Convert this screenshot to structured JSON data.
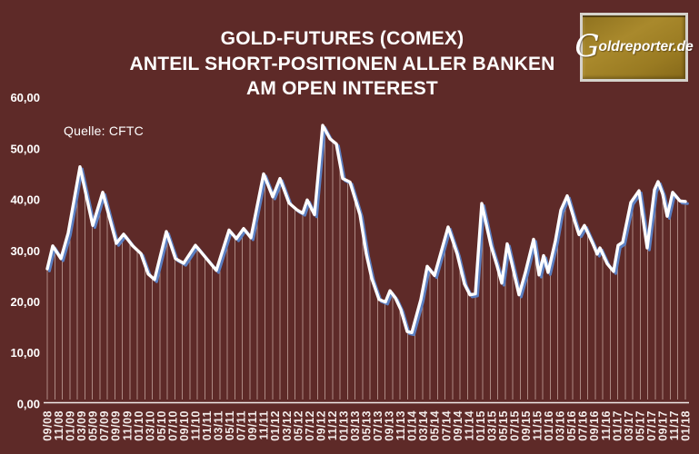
{
  "header": {
    "title_line1": "GOLD-FUTURES (COMEX)",
    "title_line2": "ANTEIL SHORT-POSITIONEN ALLER BANKEN",
    "title_line3": "AM OPEN INTEREST"
  },
  "source_label": "Quelle: CFTC",
  "logo": {
    "initial": "G",
    "rest": "oldreporter.de",
    "full_text": "Goldreporter.de"
  },
  "colors": {
    "background": "#5e2a28",
    "text": "#ffffff",
    "axis": "#f0e8e6",
    "drop_line": "#ad8a84",
    "series_line": "#ffffff",
    "series_shadow_blue": "#5b7fc2",
    "logo_gold": "#a9892c",
    "logo_frame": "#d5d2cc"
  },
  "chart_data": {
    "type": "line",
    "title": "GOLD-FUTURES (COMEX) — Anteil Short-Positionen aller Banken am Open Interest",
    "source": "Quelle: CFTC",
    "unit": "percent",
    "ylim": [
      0,
      60
    ],
    "grid": false,
    "legend": false,
    "y_ticks": [
      {
        "value": 60,
        "label": "60,00"
      },
      {
        "value": 50,
        "label": "50,00"
      },
      {
        "value": 40,
        "label": "40,00"
      },
      {
        "value": 30,
        "label": "30,00"
      },
      {
        "value": 20,
        "label": "20,00"
      },
      {
        "value": 10,
        "label": "10,00"
      },
      {
        "value": 0,
        "label": "0,00"
      }
    ],
    "x_tick_labels": [
      "09/08",
      "11/08",
      "01/09",
      "03/09",
      "05/09",
      "07/09",
      "09/09",
      "11/09",
      "01/10",
      "03/10",
      "05/10",
      "07/10",
      "09/10",
      "11/10",
      "01/11",
      "03/11",
      "05/11",
      "07/11",
      "09/11",
      "11/11",
      "01/12",
      "03/12",
      "05/12",
      "07/12",
      "09/12",
      "11/12",
      "01/13",
      "03/13",
      "05/13",
      "07/13",
      "09/13",
      "11/13",
      "01/14",
      "03/14",
      "05/14",
      "07/14",
      "09/14",
      "11/14",
      "01/15",
      "03/15",
      "05/15",
      "07/15",
      "09/15",
      "11/15",
      "01/16",
      "03/16",
      "05/16",
      "07/16",
      "09/16",
      "11/16",
      "01/17",
      "03/17",
      "05/17",
      "07/17",
      "09/17",
      "11/17",
      "01/18"
    ],
    "x_encoding": "points use [t, value] where t = fraction of x-axis from 09/2008 (0.0) to 01/2018 (1.0)",
    "drop_lines_count": 86,
    "series": [
      {
        "name": "Short-Anteil aller Banken am Open Interest (%)",
        "points": [
          [
            0.0,
            26.5
          ],
          [
            0.0085,
            31.0
          ],
          [
            0.0214,
            28.5
          ],
          [
            0.0328,
            33.5
          ],
          [
            0.0513,
            46.5
          ],
          [
            0.0712,
            35.0
          ],
          [
            0.0869,
            41.5
          ],
          [
            0.1083,
            31.5
          ],
          [
            0.1197,
            33.3
          ],
          [
            0.1339,
            31.0
          ],
          [
            0.1467,
            29.5
          ],
          [
            0.1581,
            25.5
          ],
          [
            0.1681,
            24.4
          ],
          [
            0.1866,
            33.8
          ],
          [
            0.2009,
            28.5
          ],
          [
            0.2137,
            27.6
          ],
          [
            0.2322,
            31.1
          ],
          [
            0.2536,
            27.9
          ],
          [
            0.265,
            26.2
          ],
          [
            0.2849,
            34.1
          ],
          [
            0.2963,
            32.4
          ],
          [
            0.3077,
            34.4
          ],
          [
            0.3191,
            32.6
          ],
          [
            0.339,
            45.1
          ],
          [
            0.3533,
            40.6
          ],
          [
            0.3647,
            44.2
          ],
          [
            0.3789,
            39.4
          ],
          [
            0.3917,
            38.0
          ],
          [
            0.4003,
            37.4
          ],
          [
            0.4074,
            40.0
          ],
          [
            0.4188,
            37.1
          ],
          [
            0.4316,
            54.6
          ],
          [
            0.443,
            52.0
          ],
          [
            0.453,
            51.0
          ],
          [
            0.463,
            44.2
          ],
          [
            0.4744,
            43.5
          ],
          [
            0.4815,
            40.6
          ],
          [
            0.49,
            37.1
          ],
          [
            0.5,
            29.4
          ],
          [
            0.5085,
            24.6
          ],
          [
            0.5199,
            20.5
          ],
          [
            0.5299,
            20.0
          ],
          [
            0.537,
            22.2
          ],
          [
            0.5456,
            20.8
          ],
          [
            0.5541,
            18.5
          ],
          [
            0.5641,
            14.2
          ],
          [
            0.5712,
            14.0
          ],
          [
            0.5855,
            20.5
          ],
          [
            0.5954,
            27.0
          ],
          [
            0.6068,
            25.2
          ],
          [
            0.6282,
            34.7
          ],
          [
            0.6425,
            29.4
          ],
          [
            0.6538,
            23.5
          ],
          [
            0.6624,
            21.4
          ],
          [
            0.6709,
            21.6
          ],
          [
            0.6809,
            39.3
          ],
          [
            0.6952,
            31.1
          ],
          [
            0.7051,
            27.0
          ],
          [
            0.7123,
            23.7
          ],
          [
            0.7208,
            31.4
          ],
          [
            0.7279,
            27.6
          ],
          [
            0.7393,
            21.4
          ],
          [
            0.7493,
            25.8
          ],
          [
            0.7621,
            32.3
          ],
          [
            0.7707,
            25.3
          ],
          [
            0.7778,
            29.1
          ],
          [
            0.7849,
            25.8
          ],
          [
            0.7963,
            32.0
          ],
          [
            0.8048,
            38.0
          ],
          [
            0.8148,
            40.8
          ],
          [
            0.8262,
            36.0
          ],
          [
            0.8333,
            33.2
          ],
          [
            0.8419,
            35.0
          ],
          [
            0.8547,
            31.5
          ],
          [
            0.8618,
            29.4
          ],
          [
            0.8661,
            30.6
          ],
          [
            0.8775,
            27.5
          ],
          [
            0.8875,
            26.0
          ],
          [
            0.8946,
            31.1
          ],
          [
            0.9017,
            31.7
          ],
          [
            0.9145,
            39.5
          ],
          [
            0.9274,
            41.8
          ],
          [
            0.9402,
            30.6
          ],
          [
            0.9516,
            42.0
          ],
          [
            0.9573,
            43.6
          ],
          [
            0.9644,
            41.2
          ],
          [
            0.9715,
            36.8
          ],
          [
            0.9801,
            41.5
          ],
          [
            0.9915,
            39.8
          ],
          [
            1.0,
            39.7
          ]
        ]
      }
    ]
  }
}
